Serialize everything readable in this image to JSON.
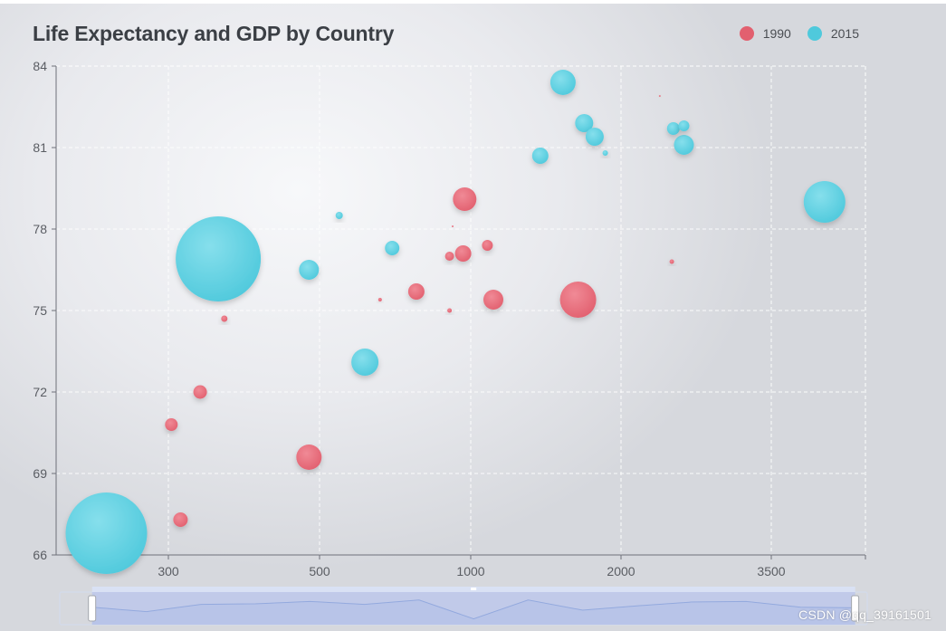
{
  "chart_data": {
    "type": "scatter",
    "title": "Life Expectancy and GDP by Country",
    "xlabel": "",
    "ylabel": "",
    "x_ticks": [
      "300",
      "500",
      "1000",
      "2000",
      "3500"
    ],
    "y_ticks": [
      66,
      69,
      72,
      75,
      78,
      81,
      84
    ],
    "ylim": [
      66,
      84
    ],
    "legend": {
      "position": "top-right"
    },
    "series": [
      {
        "name": "1990",
        "color": "#e2606f",
        "points": [
          {
            "xtick": 0.02,
            "y": 70.8,
            "size": 14
          },
          {
            "xtick": 0.08,
            "y": 67.3,
            "size": 16
          },
          {
            "xtick": 0.21,
            "y": 72.0,
            "size": 15
          },
          {
            "xtick": 0.37,
            "y": 74.7,
            "size": 7
          },
          {
            "xtick": 0.93,
            "y": 69.6,
            "size": 28
          },
          {
            "xtick": 1.4,
            "y": 75.4,
            "size": 4
          },
          {
            "xtick": 1.64,
            "y": 75.7,
            "size": 18
          },
          {
            "xtick": 1.86,
            "y": 75.0,
            "size": 5
          },
          {
            "xtick": 1.86,
            "y": 77.0,
            "size": 10
          },
          {
            "xtick": 1.88,
            "y": 78.1,
            "size": 2
          },
          {
            "xtick": 1.95,
            "y": 77.1,
            "size": 18
          },
          {
            "xtick": 1.96,
            "y": 79.1,
            "size": 26
          },
          {
            "xtick": 2.11,
            "y": 77.4,
            "size": 12
          },
          {
            "xtick": 2.15,
            "y": 75.4,
            "size": 22
          },
          {
            "xtick": 2.71,
            "y": 75.4,
            "size": 40
          },
          {
            "xtick": 3.25,
            "y": 82.9,
            "size": 2
          },
          {
            "xtick": 3.33,
            "y": 76.8,
            "size": 5
          }
        ]
      },
      {
        "name": "2015",
        "color": "#4fc9dc",
        "points": [
          {
            "xtick": -0.41,
            "y": 66.8,
            "size": 90
          },
          {
            "xtick": 0.33,
            "y": 76.9,
            "size": 94
          },
          {
            "xtick": 0.93,
            "y": 76.5,
            "size": 22
          },
          {
            "xtick": 1.13,
            "y": 78.5,
            "size": 8
          },
          {
            "xtick": 1.3,
            "y": 73.1,
            "size": 30
          },
          {
            "xtick": 1.48,
            "y": 77.3,
            "size": 16
          },
          {
            "xtick": 2.46,
            "y": 80.7,
            "size": 18
          },
          {
            "xtick": 2.61,
            "y": 83.4,
            "size": 28
          },
          {
            "xtick": 2.75,
            "y": 81.9,
            "size": 20
          },
          {
            "xtick": 2.82,
            "y": 81.4,
            "size": 20
          },
          {
            "xtick": 2.89,
            "y": 80.8,
            "size": 6
          },
          {
            "xtick": 3.34,
            "y": 81.7,
            "size": 14
          },
          {
            "xtick": 3.41,
            "y": 81.8,
            "size": 12
          },
          {
            "xtick": 3.41,
            "y": 81.1,
            "size": 22
          },
          {
            "xtick": 4.34,
            "y": 79.0,
            "size": 46
          }
        ]
      }
    ],
    "data_zoom": {
      "range_start_fraction": 0.04,
      "range_end_fraction": 0.985,
      "preview_values": [
        0.6,
        0.45,
        0.7,
        0.72,
        0.8,
        0.7,
        0.85,
        0.2,
        0.85,
        0.5,
        0.65,
        0.78,
        0.8,
        0.6,
        0.58
      ]
    }
  },
  "watermark": "CSDN @qq_39161501"
}
